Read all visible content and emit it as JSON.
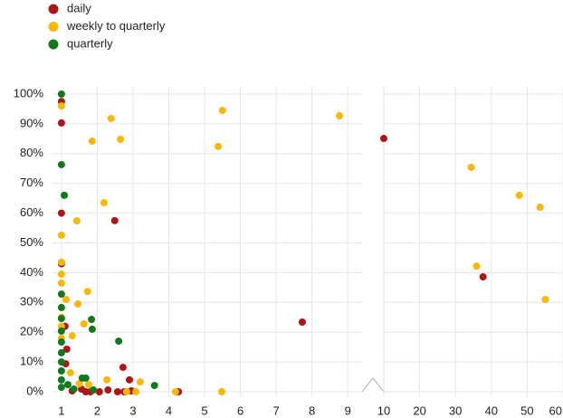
{
  "chart_data": {
    "type": "scatter",
    "legend": "top-left",
    "grid": true,
    "ylim": [
      0,
      100
    ],
    "yticks": [
      {
        "value": 0,
        "label": "0%"
      },
      {
        "value": 10,
        "label": "10%"
      },
      {
        "value": 20,
        "label": "20%"
      },
      {
        "value": 30,
        "label": "30%"
      },
      {
        "value": 40,
        "label": "40%"
      },
      {
        "value": 50,
        "label": "50%"
      },
      {
        "value": 60,
        "label": "60%"
      },
      {
        "value": 70,
        "label": "70%"
      },
      {
        "value": 80,
        "label": "80%"
      },
      {
        "value": 90,
        "label": "90%"
      },
      {
        "value": 100,
        "label": "100%"
      }
    ],
    "panels": [
      {
        "xlim": [
          0.75,
          9.4
        ],
        "xticks": [
          1,
          2,
          3,
          4,
          5,
          6,
          7,
          8,
          9
        ]
      },
      {
        "xlim": [
          10,
          60
        ],
        "xticks": [
          10,
          20,
          30,
          40,
          50,
          60
        ]
      }
    ],
    "series": [
      {
        "name": "daily",
        "color": "#b01515",
        "x": [
          1,
          1,
          1,
          1,
          2.49,
          1.1,
          1.15,
          1.12,
          2.72,
          2.9,
          7.73,
          4.27,
          1.3,
          1.56,
          1.68,
          1.81,
          2.06,
          2.3,
          2.57,
          2.75,
          2.95,
          10,
          37.7
        ],
        "y": [
          90.3,
          97.5,
          60,
          43,
          57.5,
          22,
          14.3,
          9.4,
          8.2,
          4,
          23.4,
          0,
          0.3,
          0.9,
          0,
          0,
          0,
          0.6,
          0,
          0,
          0.3,
          85.1,
          38.6
        ]
      },
      {
        "name": "weekly to quarterly",
        "color": "#fbb706",
        "x": [
          1,
          2.39,
          5.5,
          8.77,
          1.86,
          2.65,
          5.38,
          2.19,
          1.43,
          1,
          1,
          1,
          1,
          1.13,
          1.73,
          1.46,
          1.63,
          1,
          1,
          1,
          1.3,
          1.25,
          2.27,
          3.2,
          2.82,
          3.08,
          4.19,
          5.48,
          1.5,
          1.76,
          34.4,
          35.9,
          47.8,
          53.6,
          55.1
        ],
        "y": [
          96,
          91.8,
          94.5,
          92.7,
          84.2,
          84.8,
          82.4,
          63.5,
          57.4,
          52.6,
          43.5,
          39.5,
          36.5,
          31,
          33.7,
          29.5,
          22.8,
          25,
          22,
          18,
          18.8,
          6.4,
          4,
          3.3,
          0,
          0,
          0,
          0,
          2.7,
          2.4,
          75.4,
          42.2,
          66,
          62,
          31
        ]
      },
      {
        "name": "quarterly",
        "color": "#0f7a1c",
        "x": [
          1,
          1,
          1.08,
          1,
          1,
          1,
          1,
          1,
          1,
          1.84,
          1.86,
          2.6,
          1.58,
          1.68,
          3.6,
          1.89,
          1,
          1,
          1,
          1,
          1.18,
          1.35
        ],
        "y": [
          100,
          76.3,
          66,
          32.8,
          28.3,
          24.6,
          20.4,
          16.7,
          13.1,
          24.3,
          21,
          17,
          4.6,
          4.6,
          2.1,
          0.6,
          10,
          7,
          4,
          1.5,
          2.4,
          0.9
        ]
      }
    ]
  }
}
